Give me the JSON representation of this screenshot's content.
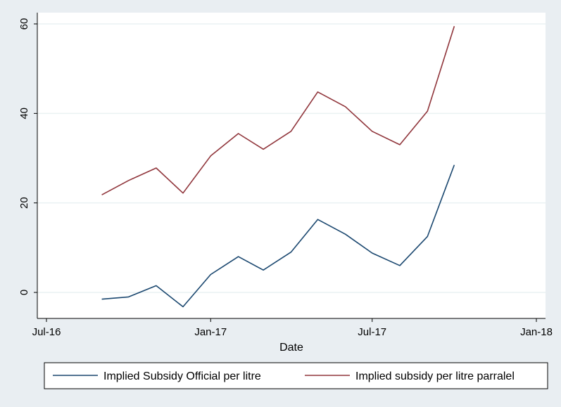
{
  "chart_data": {
    "type": "line",
    "title": "",
    "xlabel": "Date",
    "ylabel": "",
    "x_ticks": [
      "Jul-16",
      "Jan-17",
      "Jul-17",
      "Jan-18"
    ],
    "y_ticks": [
      0,
      20,
      40,
      60
    ],
    "xlim": [
      "2016-07-01",
      "2018-01-01"
    ],
    "ylim": [
      -5.5,
      62.5
    ],
    "grid": "horizontal",
    "legend_position": "bottom",
    "x": [
      "2016-09-01",
      "2016-10-01",
      "2016-11-01",
      "2016-12-01",
      "2017-01-01",
      "2017-02-01",
      "2017-03-01",
      "2017-04-01",
      "2017-05-01",
      "2017-06-01",
      "2017-07-01",
      "2017-08-01",
      "2017-09-01",
      "2017-10-01"
    ],
    "series": [
      {
        "name": "Implied Subsidy Official per litre",
        "color": "#1a476f",
        "values": [
          -1.5,
          -1,
          1.5,
          -3.2,
          4,
          8,
          5,
          9,
          16.3,
          13,
          8.8,
          6,
          12.5,
          28.5
        ]
      },
      {
        "name": "Implied subsidy per litre parralel",
        "color": "#90353b",
        "values": [
          21.8,
          25,
          27.8,
          22.2,
          30.5,
          35.5,
          32,
          36,
          44.8,
          41.5,
          36,
          33,
          40.5,
          59.5
        ]
      }
    ]
  }
}
